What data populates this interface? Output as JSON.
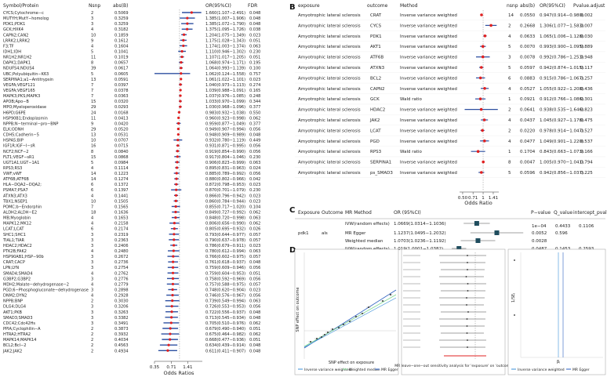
{
  "colors": {
    "forest": "#2d4fa0",
    "point": "#e02020",
    "ivw": "#3a8fd8",
    "wm": "#7bd88f",
    "egger": "#2a5fc0"
  },
  "panel_a": {
    "label": "A",
    "headers": [
      "Symbol/Protein",
      "Nsnp",
      "abs(B)",
      "OR(95%CI)",
      "FDR"
    ],
    "xlabel": "Odds Ratios",
    "ticks": [
      "0.35",
      "0.71",
      "1.41"
    ],
    "rows": [
      [
        "CYCS;Cytochrome−c",
        "2",
        "0.5069",
        "1.660(1.107−2.491)",
        "0.048"
      ],
      [
        "MUTYH;MutY−homolog",
        "3",
        "0.3259",
        "1.385(1.007−1.906)",
        "0.048"
      ],
      [
        "PDK1;PDK1",
        "3",
        "0.3259",
        "1.385(1.072−1.790)",
        "0.048"
      ],
      [
        "GCK;HXK4",
        "4",
        "0.3182",
        "1.375(1.095−1.726)",
        "0.038"
      ],
      [
        "CAPN2;CAN2",
        "10",
        "0.1859",
        "1.204(1.075−1.349)",
        "0.023"
      ],
      [
        "LRRK2;LRRK2",
        "9",
        "0.1612",
        "1.175(1.028−1.343)",
        "0.051"
      ],
      [
        "F3;TF",
        "4",
        "0.1604",
        "1.174(1.003−1.374)",
        "0.063"
      ],
      [
        "IDH1;IDH",
        "5",
        "0.1041",
        "1.110(0.946−1.302)",
        "0.230"
      ],
      [
        "NR1H2;NR1H2",
        "11",
        "0.1019",
        "1.107(1.017−1.205)",
        "0.051"
      ],
      [
        "DAPK1;DAPK1",
        "8",
        "0.0657",
        "1.068(0.974−1.171)",
        "0.195"
      ],
      [
        "NDUFS4;NDUS4",
        "39",
        "0.0617",
        "1.064(0.993−1.139)",
        "0.100"
      ],
      [
        "UBC;Polyubiquitin−K63",
        "5",
        "0.0605",
        "1.062(0.124−1.558)",
        "0.757"
      ],
      [
        "SERPINA1;a1−Antitrypsin",
        "13",
        "0.0591",
        "1.061(1.022−1.101)",
        "0.023"
      ],
      [
        "VEGFA;VEGF121",
        "7",
        "0.0397",
        "1.040(0.973−1.113)",
        "0.274"
      ],
      [
        "VEGFA;VEGF165",
        "7",
        "0.0378",
        "1.039(0.988−1.091)",
        "0.165"
      ],
      [
        "MAPK3;PKS;MAPK3",
        "7",
        "0.0363",
        "1.037(0.976−1.085)",
        "0.248"
      ],
      [
        "APOB;Apo−B",
        "15",
        "0.0320",
        "1.033(0.970−1.099)",
        "0.344"
      ],
      [
        "MPO;Myeloperoxidase",
        "29",
        "0.0293",
        "1.030(0.968−1.096)",
        "0.377"
      ],
      [
        "H6PD;G6PE",
        "24",
        "0.0168",
        "0.983(0.932−1.038)",
        "0.550"
      ],
      [
        "HSP90B1;Endoplasmin",
        "11",
        "0.0413",
        "0.960(0.923−0.998)",
        "0.062"
      ],
      [
        "NPPB;N−terminal−pro−BNP",
        "9",
        "0.0420",
        "0.959(0.877−1.049)",
        "0.377"
      ],
      [
        "ELK;ODNH",
        "29",
        "0.0520",
        "0.949(0.907−0.994)",
        "0.056"
      ],
      [
        "CDH5;Cadherin−5",
        "13",
        "0.0531",
        "0.948(0.909−0.989)",
        "0.048"
      ],
      [
        "HSPA5;BIP",
        "10",
        "0.0707",
        "0.932(0.780−1.119)",
        "0.449"
      ],
      [
        "IGF1R;IGF−I−sR",
        "16",
        "0.0715",
        "0.931(0.871−0.995)",
        "0.056"
      ],
      [
        "NCF2;NCF−2",
        "8",
        "0.0840",
        "0.919(0.854−0.990)",
        "0.056"
      ],
      [
        "FLT1;VEGF−sR1",
        "15",
        "0.0868",
        "0.917(0.804−1.046)",
        "0.230"
      ],
      [
        "UGT1A1;UGT−1A1",
        "5",
        "0.0984",
        "0.906(0.823−0.999)",
        "0.063"
      ],
      [
        "RPS3;RS3",
        "4",
        "0.1114",
        "0.895(0.831−0.963)",
        "0.024"
      ],
      [
        "VWF;vWF",
        "14",
        "0.1223",
        "0.885(0.789−0.992)",
        "0.056"
      ],
      [
        "ATF6B;ATF6B",
        "14",
        "0.1274",
        "0.880(0.802−0.966)",
        "0.042"
      ],
      [
        "HLA−DQA2−DQA2;",
        "6",
        "0.1372",
        "0.872(0.798−0.953)",
        "0.023"
      ],
      [
        "PSMA7;PSA7",
        "6",
        "0.1397",
        "0.870(0.701−1.079)",
        "0.230"
      ],
      [
        "ATXN3;ATX3",
        "4",
        "0.1441",
        "0.866(0.796−0.942)",
        "0.023"
      ],
      [
        "TBX1;NSEP1",
        "10",
        "0.1505",
        "0.860(0.784−0.944)",
        "0.023"
      ],
      [
        "POMC;b−Endorphin",
        "7",
        "0.1565",
        "0.855(0.717−1.020)",
        "0.104"
      ],
      [
        "ALDH2;ALDH−E2",
        "18",
        "0.1636",
        "0.849(0.727−0.992)",
        "0.062"
      ],
      [
        "MB;Myoglobin",
        "4",
        "0.1653",
        "0.848(0.720−0.998)",
        "0.063"
      ],
      [
        "MAPK12;MK12",
        "4",
        "0.2158",
        "0.806(0.656−0.990)",
        "0.062"
      ],
      [
        "LCAT;LCAT",
        "6",
        "0.2174",
        "0.805(0.695−0.932)",
        "0.026"
      ],
      [
        "SHC1;SHC1",
        "3",
        "0.2319",
        "0.793(0.644−0.977)",
        "0.057"
      ],
      [
        "TIAL1;TIAR",
        "3",
        "0.2363",
        "0.790(0.637−0.978)",
        "0.057"
      ],
      [
        "HDAC2;HDAC2",
        "3",
        "0.2406",
        "0.786(0.679−0.911)",
        "0.023"
      ],
      [
        "PTK2B;FAK2",
        "4",
        "0.2480",
        "0.780(0.612−0.994)",
        "0.063"
      ],
      [
        "HSP90AB1;HSP−90b",
        "3",
        "0.2672",
        "0.766(0.602−0.975)",
        "0.057"
      ],
      [
        "CRAT;CACP",
        "3",
        "0.2736",
        "0.761(0.618−0.937)",
        "0.048"
      ],
      [
        "LPN;LYN",
        "3",
        "0.2754",
        "0.759(0.609−0.946)",
        "0.056"
      ],
      [
        "SMAD4;SMAD4",
        "4",
        "0.2762",
        "0.759(0.604−0.953)",
        "0.051"
      ],
      [
        "G3BP2;G3BP2",
        "3",
        "0.2776",
        "0.758(0.592−0.969)",
        "0.056"
      ],
      [
        "MDH2;Malate−dehydrogenase−2",
        "4",
        "0.2779",
        "0.757(0.588−0.975)",
        "0.057"
      ],
      [
        "PGD;6−Phosphogluconate−dehydrogenase",
        "3",
        "0.2898",
        "0.748(0.620−0.904)",
        "0.023"
      ],
      [
        "DNM2;DYN2",
        "4",
        "0.2928",
        "0.746(0.576−0.967)",
        "0.056"
      ],
      [
        "NPPB;BNP",
        "2",
        "0.3030",
        "0.739(0.549−0.994)",
        "0.063"
      ],
      [
        "DLG4;DLG4",
        "3",
        "0.3206",
        "0.726(0.553−0.953)",
        "0.056"
      ],
      [
        "AKT1;PKB",
        "3",
        "0.3263",
        "0.722(0.556−0.937)",
        "0.048"
      ],
      [
        "SMAD3;SMAD3",
        "3",
        "0.3382",
        "0.713(0.545−0.934)",
        "0.048"
      ],
      [
        "CDC42;Cdc42Hs",
        "3",
        "0.3491",
        "0.705(0.510−0.976)",
        "0.062"
      ],
      [
        "PPIA;Cyclophilin−A",
        "2",
        "0.3873",
        "0.679(0.490−0.940)",
        "0.051"
      ],
      [
        "HTRA2;HTRA2",
        "2",
        "0.3932",
        "0.675(0.464−0.982)",
        "0.062"
      ],
      [
        "MAPK14;MAPK14",
        "2",
        "0.4034",
        "0.668(0.477−0.936)",
        "0.051"
      ],
      [
        "BCL2;Bcl−2",
        "2",
        "0.4563",
        "0.634(0.439−0.914)",
        "0.048"
      ],
      [
        "JAK2;JAK2",
        "2",
        "0.4934",
        "0.611(0.411−0.907)",
        "0.048"
      ]
    ]
  },
  "panel_b": {
    "label": "B",
    "headers": [
      "exposure",
      "outcome",
      "Method",
      "",
      "nsnp",
      "abs(b)",
      "OR(95%CI)",
      "Pvalue.adjust"
    ],
    "xlabel": "Odds Ratio",
    "ticks": [
      "0.50",
      "0.71",
      "1",
      "1.41"
    ],
    "rows": [
      [
        "Amyotrophic lateral sclerosis",
        "CRAT",
        "Inverse variance weighted",
        "14",
        "0.0550",
        "0.947(0.914−0.980)",
        "0.002"
      ],
      [
        "Amyotrophic lateral sclerosis",
        "CYCS",
        "Inverse variance weighted",
        "2",
        "0.2668",
        "1.306(1.077−1.583)",
        "0.007"
      ],
      [
        "Amyotrophic lateral sclerosis",
        "PDK1",
        "Inverse variance weighted",
        "4",
        "0.0633",
        "1.065(1.006−1.128)",
        "0.030"
      ],
      [
        "Amyotrophic lateral sclerosis",
        "AKT1",
        "Inverse variance weighted",
        "5",
        "0.0070",
        "0.993(0.900−1.095)",
        "0.889"
      ],
      [
        "Amyotrophic lateral sclerosis",
        "ATF6B",
        "Inverse variance weighted",
        "3",
        "0.0078",
        "0.992(0.786−1.253)",
        "0.948"
      ],
      [
        "Amyotrophic lateral sclerosis",
        "ATXN3",
        "Inverse variance weighted",
        "5",
        "0.0597",
        "0.942(0.874−1.015)",
        "0.117"
      ],
      [
        "Amyotrophic lateral sclerosis",
        "BCL2",
        "Inverse variance weighted",
        "6",
        "0.0883",
        "0.915(0.786−1.067)",
        "0.257"
      ],
      [
        "Amyotrophic lateral sclerosis",
        "CAPN2",
        "Inverse variance weighted",
        "4",
        "0.0527",
        "1.055(0.922−1.208)",
        "0.436"
      ],
      [
        "Amyotrophic lateral sclerosis",
        "GCK",
        "Wald ratio",
        "1",
        "0.0921",
        "0.912(0.766−1.086)",
        "0.301"
      ],
      [
        "Amyotrophic lateral sclerosis",
        "HDAC2",
        "Inverse variance weighted",
        "2",
        "0.0641",
        "0.938(0.535−1.646)",
        "0.823"
      ],
      [
        "Amyotrophic lateral sclerosis",
        "JAK2",
        "Inverse variance weighted",
        "4",
        "0.0437",
        "1.045(0.927−1.178)",
        "0.475"
      ],
      [
        "Amyotrophic lateral sclerosis",
        "LCAT",
        "Inverse variance weighted",
        "2",
        "0.0220",
        "0.978(0.914−1.047)",
        "0.527"
      ],
      [
        "Amyotrophic lateral sclerosis",
        "PGD",
        "Inverse variance weighted",
        "4",
        "0.0477",
        "1.049(0.901−1.220)",
        "0.537"
      ],
      [
        "Amyotrophic lateral sclerosis",
        "RPS3",
        "Wald ratio",
        "1",
        "0.1704",
        "0.843(0.663−1.073)",
        "0.166"
      ],
      [
        "Amyotrophic lateral sclerosis",
        "SERPINA1",
        "Inverse variance weighted",
        "8",
        "0.0047",
        "1.005(0.970−1.041)",
        "0.794"
      ],
      [
        "Amyotrophic lateral sclerosis",
        "ps_SMAD3",
        "Inverse variance weighted",
        "5",
        "0.0596",
        "0.942(0.856−1.037)",
        "0.225"
      ]
    ]
  },
  "panel_c": {
    "label": "C",
    "headers": [
      "Exposure",
      "Outcome",
      "MR Method",
      "OR (95%CI)",
      "",
      "P−value",
      "Q_value",
      "intercept_pval"
    ],
    "rows": [
      [
        "",
        "",
        "IVW(random effects)",
        "1.0669(1.0314−1.1036)",
        "",
        "",
        "",
        ""
      ],
      [
        "pdk1",
        "als",
        "MR Egger",
        "1.1237(1.0495−1.2032)",
        "",
        "0.0052",
        "0.596",
        ""
      ],
      [
        "",
        "",
        "Weighted median",
        "1.0703(1.0236−1.1192)",
        "",
        "0.0028",
        "",
        ""
      ],
      [
        "",
        "",
        "IVW(random effects)",
        "1.019(1.0001−1.0382)",
        "",
        "0.0487",
        "0.1453",
        "0.2593"
      ]
    ],
    "extra_top": {
      "p": "1e−04",
      "q": "0.4433",
      "int": "0.1106"
    }
  },
  "panel_d": {
    "label": "D",
    "scatter": {
      "xlabel": "SNP effect on exposure",
      "ylabel": "SNP effect on outcome",
      "legend": [
        "Inverse variance weighted",
        "Weighted median",
        "MR Egger"
      ]
    },
    "leave_one_out": {
      "xlabel": "MR leave−one−out sensitivity analysis for 'exposure' on 'outcome"
    },
    "funnel": {
      "ylabel": "1/SEⱼ",
      "xlabel": "βⱼ",
      "legend": [
        "Inverse variance weighted",
        "MR Egger"
      ]
    }
  }
}
